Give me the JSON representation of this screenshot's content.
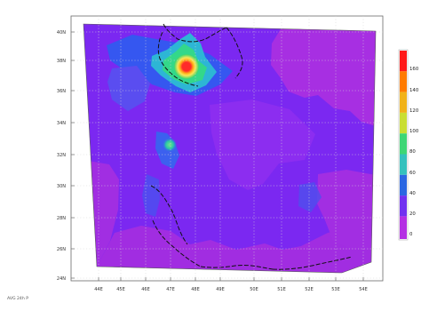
{
  "map": {
    "x_tick_labels": [
      "44E",
      "45E",
      "46E",
      "47E",
      "48E",
      "49E",
      "50E",
      "51E",
      "52E",
      "53E",
      "54E"
    ],
    "y_tick_labels": [
      "40N",
      "38N",
      "36N",
      "34N",
      "32N",
      "30N",
      "28N",
      "26N",
      "24N"
    ],
    "legend": {
      "labels": [
        "160",
        "140",
        "120",
        "100",
        "80",
        "60",
        "40",
        "20",
        "0"
      ],
      "colors": [
        "#ff1a1a",
        "#ff7b00",
        "#f1b219",
        "#c9de33",
        "#3ed675",
        "#34c1bd",
        "#2b67e2",
        "#7131f0",
        "#b42fe3"
      ]
    },
    "footer_note": "AVG 24h P"
  }
}
